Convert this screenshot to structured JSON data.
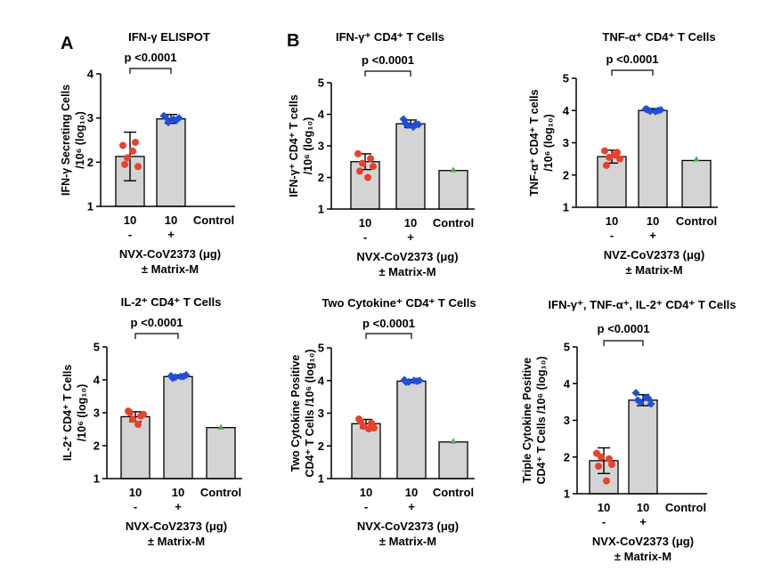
{
  "panel_letters": [
    "A",
    "B"
  ],
  "chart_data": [
    {
      "type": "bar",
      "title": "IFN-γ ELISPOT",
      "ylabel": [
        "IFN-γ Secreting Cells",
        "/10⁶ (log₁₀)"
      ],
      "ylim": [
        1,
        4
      ],
      "yticks": [
        1,
        2,
        3,
        4
      ],
      "categories": [
        [
          "10",
          "-"
        ],
        [
          "10",
          "+"
        ],
        [
          "Control",
          ""
        ]
      ],
      "values": [
        2.13,
        2.98,
        null
      ],
      "errors": [
        0.55,
        0.1,
        null
      ],
      "points": [
        [
          2.38,
          2.45,
          2.1,
          1.9,
          1.95,
          2.25
        ],
        [
          3.05,
          2.95,
          2.9,
          3.0,
          3.02,
          2.97
        ],
        []
      ],
      "point_colors": [
        "#e8412c",
        "#1f4fd8",
        "#4caf50"
      ],
      "pvalue": "p <0.0001",
      "xlabel": [
        "NVX-CoV2373 (μg)",
        "± Matrix-M"
      ]
    },
    {
      "type": "bar",
      "title": "IFN-γ⁺ CD4⁺ T Cells",
      "ylabel": [
        "IFN-γ⁺ CD4⁺ T cells",
        "/10⁶ (log₁₀)"
      ],
      "ylim": [
        1,
        5
      ],
      "yticks": [
        1,
        2,
        3,
        4,
        5
      ],
      "categories": [
        [
          "10",
          "-"
        ],
        [
          "10",
          "+"
        ],
        [
          "Control",
          ""
        ]
      ],
      "values": [
        2.5,
        3.7,
        2.22
      ],
      "errors": [
        0.25,
        0.12,
        null
      ],
      "points": [
        [
          2.75,
          2.6,
          2.45,
          2.35,
          2.2,
          2.0
        ],
        [
          3.85,
          3.7,
          3.65,
          3.68,
          3.72,
          3.6
        ],
        [
          2.25
        ]
      ],
      "point_colors": [
        "#e8412c",
        "#1f4fd8",
        "#4caf50"
      ],
      "pvalue": "p <0.0001",
      "xlabel": [
        "NVX-CoV2373 (μg)",
        "± Matrix-M"
      ]
    },
    {
      "type": "bar",
      "title": "TNF-α⁺ CD4⁺ T Cells",
      "ylabel": [
        "TNF-α⁺ CD4⁺ T cells",
        "/10⁶ (log₁₀)"
      ],
      "ylim": [
        1,
        5
      ],
      "yticks": [
        1,
        2,
        3,
        4,
        5
      ],
      "categories": [
        [
          "10",
          "-"
        ],
        [
          "10",
          "+"
        ],
        [
          "Control",
          ""
        ]
      ],
      "values": [
        2.57,
        4.0,
        2.45
      ],
      "errors": [
        0.2,
        0.06,
        null
      ],
      "points": [
        [
          2.75,
          2.7,
          2.55,
          2.5,
          2.3,
          2.62
        ],
        [
          4.05,
          4.0,
          3.98,
          4.02,
          4.03,
          3.97
        ],
        [
          2.5
        ]
      ],
      "point_colors": [
        "#e8412c",
        "#1f4fd8",
        "#4caf50"
      ],
      "pvalue": "p <0.0001",
      "xlabel": [
        "NVZ-CoV2373 (μg)",
        "± Matrix-M"
      ]
    },
    {
      "type": "bar",
      "title": "IL-2⁺ CD4⁺ T Cells",
      "ylabel": [
        "IL-2⁺ CD4⁺ T Cells",
        "/10⁶ (log₁₀)"
      ],
      "ylim": [
        1,
        5
      ],
      "yticks": [
        1,
        2,
        3,
        4,
        5
      ],
      "categories": [
        [
          "10",
          "-"
        ],
        [
          "10",
          "+"
        ],
        [
          "Control",
          ""
        ]
      ],
      "values": [
        2.88,
        4.1,
        2.55
      ],
      "errors": [
        0.15,
        0.05,
        null
      ],
      "points": [
        [
          3.05,
          2.9,
          2.8,
          2.95,
          3.0,
          2.65
        ],
        [
          4.12,
          4.1,
          4.08,
          4.15,
          4.05,
          4.1
        ],
        [
          2.57
        ]
      ],
      "point_colors": [
        "#e8412c",
        "#1f4fd8",
        "#4caf50"
      ],
      "pvalue": "p <0.0001",
      "xlabel": [
        "NVX-CoV2373 (μg)",
        "± Matrix-M"
      ]
    },
    {
      "type": "bar",
      "title": "Two Cytokine⁺ CD4⁺ T Cells",
      "ylabel": [
        "Two Cytokine Positive",
        "CD4⁺ T Cells /10⁶ (log₁₀)"
      ],
      "ylim": [
        1,
        5
      ],
      "yticks": [
        1,
        2,
        3,
        4,
        5
      ],
      "categories": [
        [
          "10",
          "-"
        ],
        [
          "10",
          "+"
        ],
        [
          "Control",
          ""
        ]
      ],
      "values": [
        2.68,
        3.98,
        2.12
      ],
      "errors": [
        0.13,
        0.05,
        null
      ],
      "points": [
        [
          2.82,
          2.7,
          2.6,
          2.55,
          2.75,
          2.52
        ],
        [
          4.02,
          3.98,
          3.96,
          4.0,
          3.95,
          4.0
        ],
        [
          2.15
        ]
      ],
      "point_colors": [
        "#e8412c",
        "#1f4fd8",
        "#4caf50"
      ],
      "pvalue": "p <0.0001",
      "xlabel": [
        "NVX-CoV2373 (μg)",
        "± Matrix-M"
      ]
    },
    {
      "type": "bar",
      "title": "IFN-γ⁺, TNF-α⁺, IL-2⁺ CD4⁺ T Cells",
      "ylabel": [
        "Triple Cytokine Positive",
        "CD4⁺ T Cells /10⁶ (log₁₀)"
      ],
      "ylim": [
        1,
        5
      ],
      "yticks": [
        1,
        2,
        3,
        4,
        5
      ],
      "categories": [
        [
          "10",
          "-"
        ],
        [
          "10",
          "+"
        ],
        [
          "Control",
          ""
        ]
      ],
      "values": [
        1.9,
        3.55,
        null
      ],
      "errors": [
        0.35,
        0.15,
        null
      ],
      "points": [
        [
          2.1,
          1.95,
          2.0,
          1.8,
          1.75,
          1.35
        ],
        [
          3.75,
          3.6,
          3.5,
          3.45,
          3.55,
          3.62
        ],
        []
      ],
      "point_colors": [
        "#e8412c",
        "#1f4fd8",
        "#4caf50"
      ],
      "pvalue": "p <0.0001",
      "xlabel": [
        "NVX-CoV2373 (μg)",
        "± Matrix-M"
      ]
    }
  ]
}
